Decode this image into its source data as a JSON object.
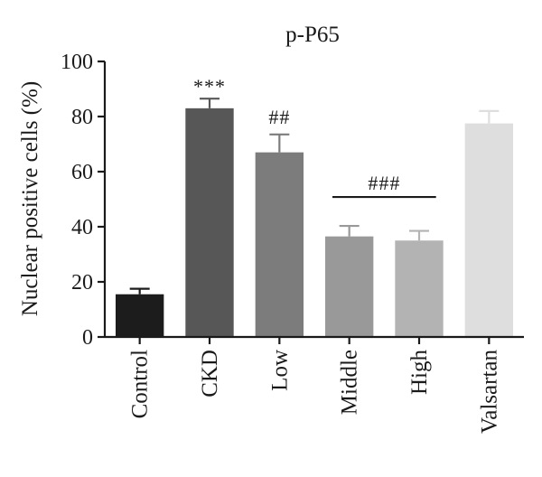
{
  "chart_data": {
    "type": "bar",
    "title": "p-P65",
    "xlabel": "",
    "ylabel": "Nuclear positive cells (%)",
    "ylim": [
      0,
      100
    ],
    "yticks": [
      0,
      20,
      40,
      60,
      80,
      100
    ],
    "grid": false,
    "categories": [
      "Control",
      "CKD",
      "Low",
      "Middle",
      "High",
      "Valsartan"
    ],
    "values": [
      15.5,
      83,
      67,
      36.5,
      35,
      77.5
    ],
    "errors": [
      2,
      3.5,
      6.5,
      3.8,
      3.5,
      4.5
    ],
    "colors": [
      "#1c1c1c",
      "#575757",
      "#7c7c7c",
      "#999999",
      "#b3b3b3",
      "#dedede"
    ],
    "annotations": [
      {
        "text": "***",
        "category": "CKD"
      },
      {
        "text": "##",
        "category": "Low"
      },
      {
        "text": "###",
        "categories": [
          "Middle",
          "High"
        ]
      }
    ]
  }
}
